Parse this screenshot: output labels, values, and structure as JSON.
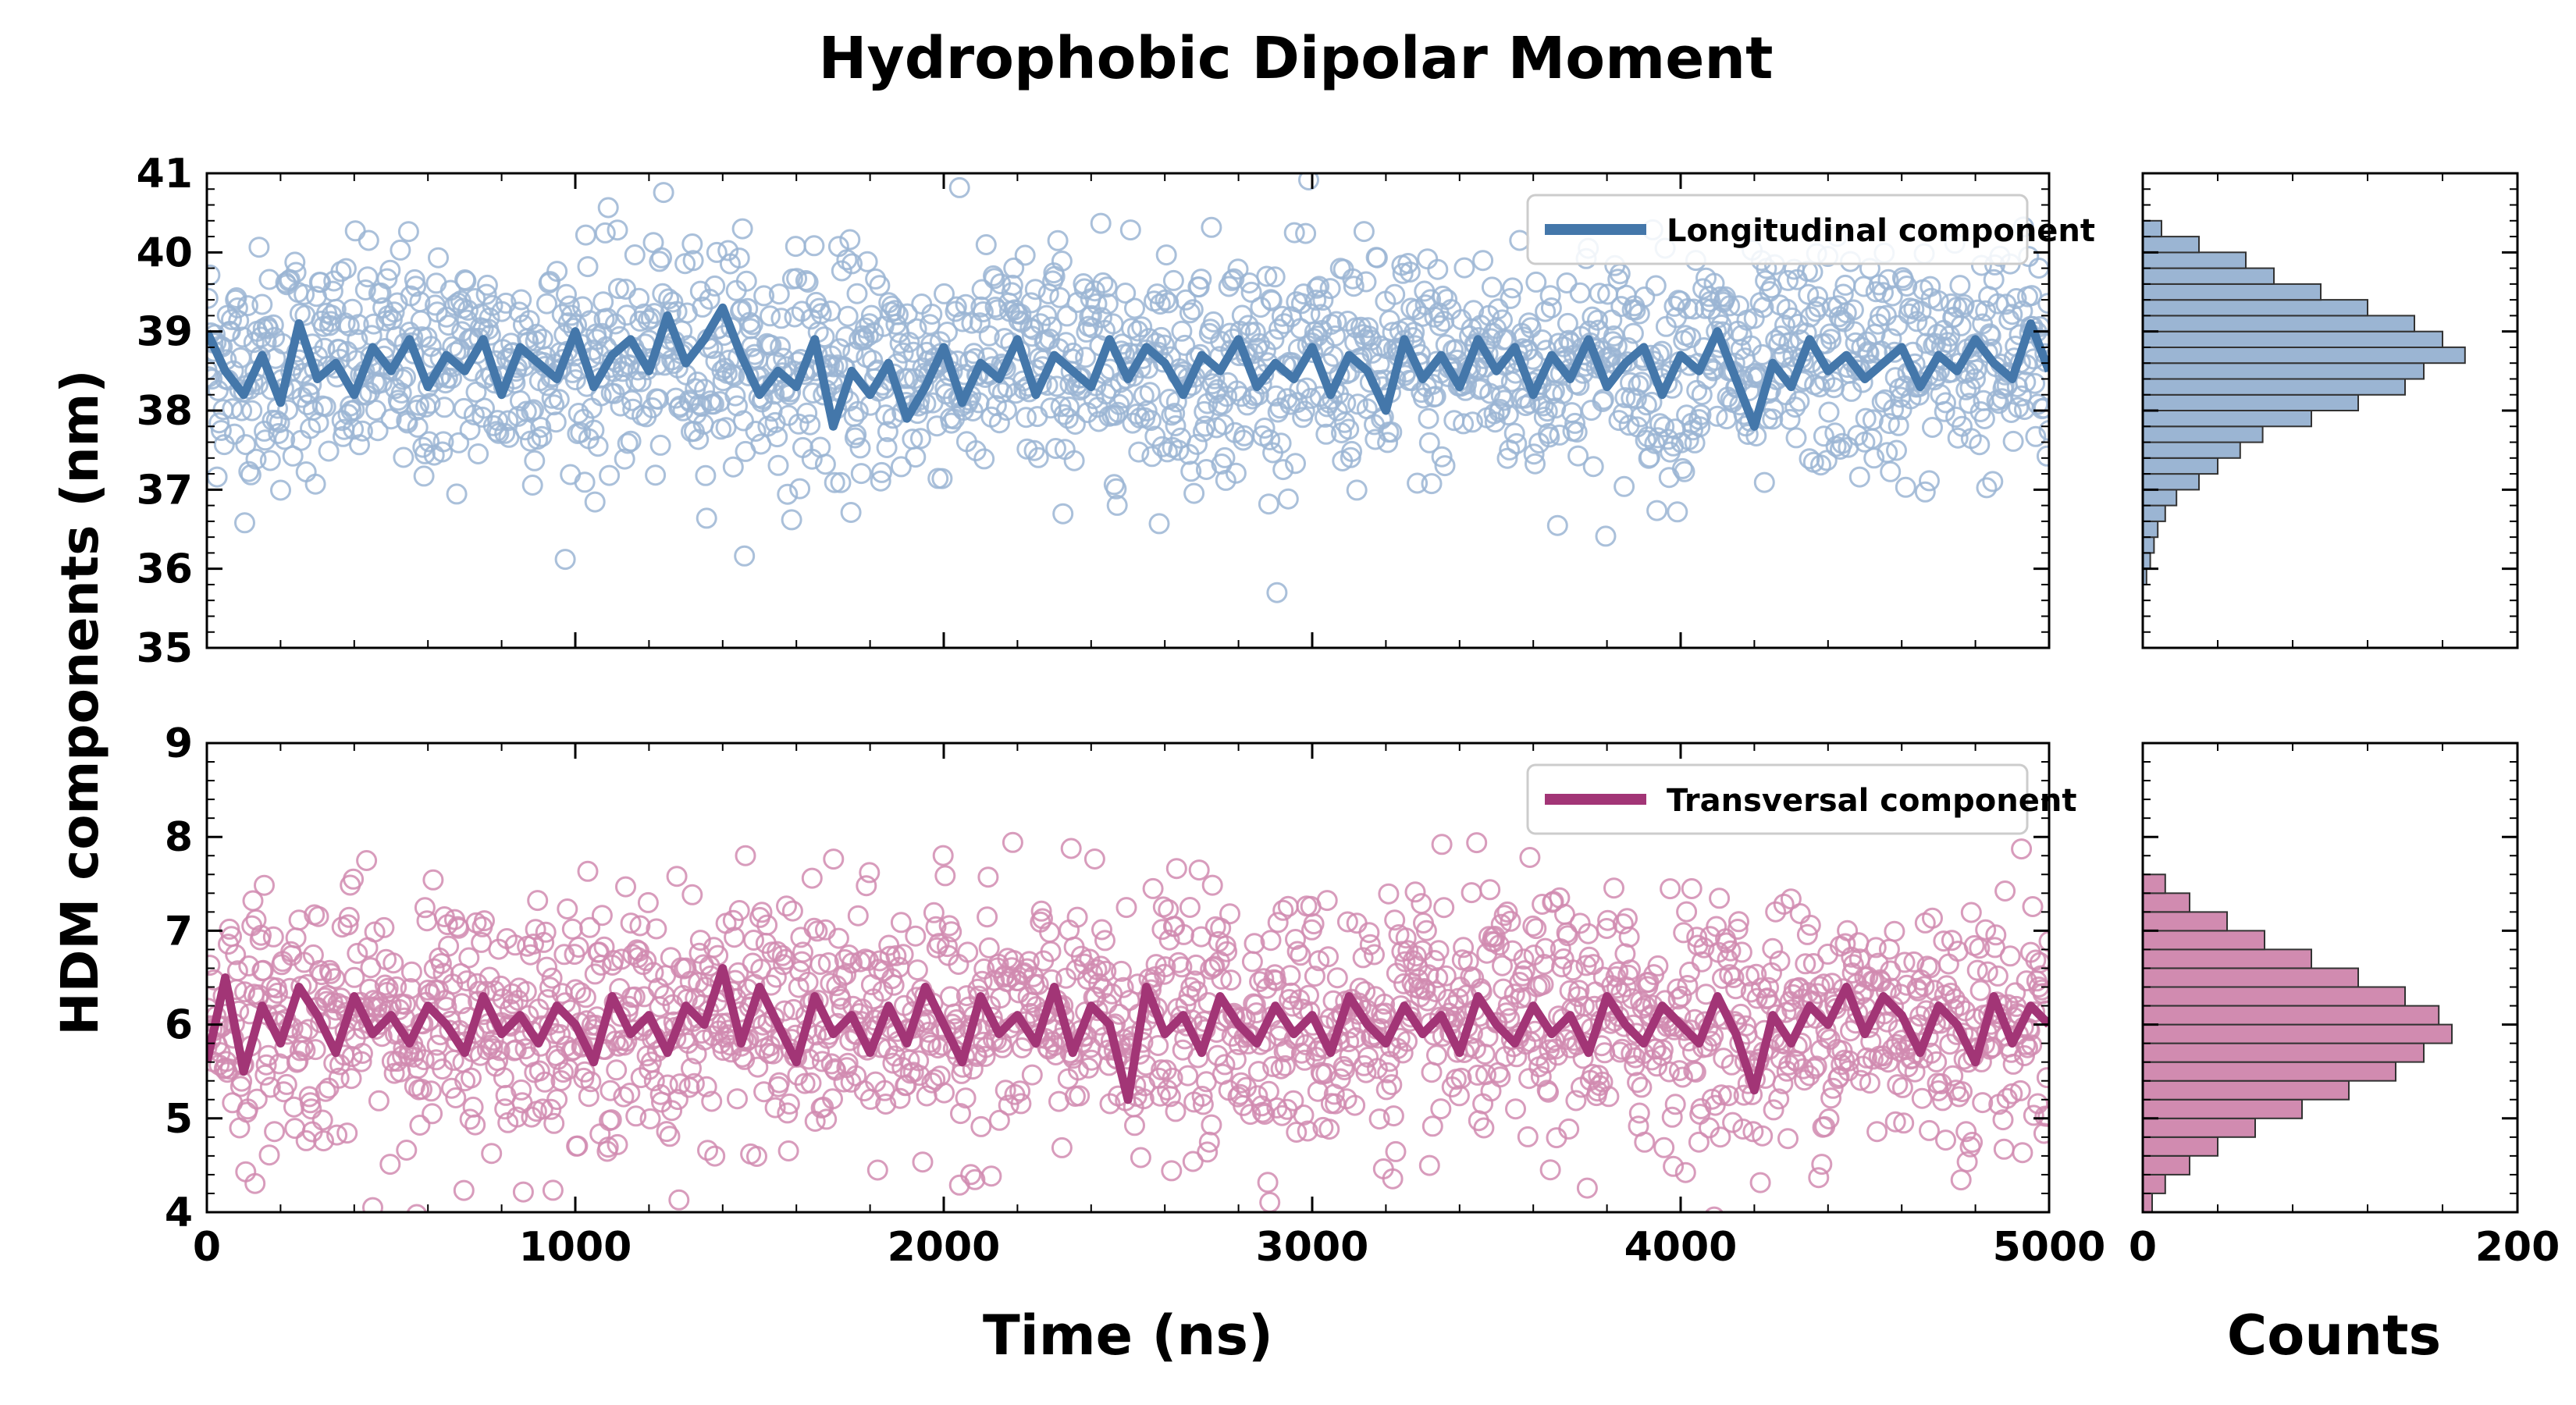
{
  "chart_data": {
    "type": "scatter",
    "title": "Hydrophobic Dipolar Moment",
    "xlabel": "Time (ns)",
    "ylabel": "HDM components (nm)",
    "hist_xlabel": "Counts",
    "grid": false,
    "panels": [
      {
        "id": "longitudinal",
        "legend": "Longitudinal component",
        "legend_position": "top-right",
        "color": "#4477aa",
        "fill": "#9bb5d3",
        "xlim": [
          0,
          5000
        ],
        "ylim": [
          35,
          41
        ],
        "xticks": [
          0,
          1000,
          2000,
          3000,
          4000,
          5000
        ],
        "yticks": [
          35,
          36,
          37,
          38,
          39,
          40,
          41
        ],
        "mean": 38.6,
        "spread": 0.72,
        "smooth_line": {
          "x": [
            0,
            50,
            100,
            150,
            200,
            250,
            300,
            350,
            400,
            450,
            500,
            550,
            600,
            650,
            700,
            750,
            800,
            850,
            900,
            950,
            1000,
            1050,
            1100,
            1150,
            1200,
            1250,
            1300,
            1350,
            1400,
            1450,
            1500,
            1550,
            1600,
            1650,
            1700,
            1750,
            1800,
            1850,
            1900,
            1950,
            2000,
            2050,
            2100,
            2150,
            2200,
            2250,
            2300,
            2350,
            2400,
            2450,
            2500,
            2550,
            2600,
            2650,
            2700,
            2750,
            2800,
            2850,
            2900,
            2950,
            3000,
            3050,
            3100,
            3150,
            3200,
            3250,
            3300,
            3350,
            3400,
            3450,
            3500,
            3550,
            3600,
            3650,
            3700,
            3750,
            3800,
            3850,
            3900,
            3950,
            4000,
            4050,
            4100,
            4150,
            4200,
            4250,
            4300,
            4350,
            4400,
            4450,
            4500,
            4550,
            4600,
            4650,
            4700,
            4750,
            4800,
            4850,
            4900,
            4950,
            5000
          ],
          "y": [
            39.0,
            38.5,
            38.2,
            38.7,
            38.1,
            39.1,
            38.4,
            38.6,
            38.2,
            38.8,
            38.5,
            38.9,
            38.3,
            38.7,
            38.5,
            38.9,
            38.2,
            38.8,
            38.6,
            38.4,
            39.0,
            38.3,
            38.7,
            38.9,
            38.5,
            39.2,
            38.6,
            38.9,
            39.3,
            38.7,
            38.2,
            38.5,
            38.3,
            38.9,
            37.8,
            38.5,
            38.2,
            38.6,
            37.9,
            38.3,
            38.8,
            38.1,
            38.6,
            38.4,
            38.9,
            38.2,
            38.7,
            38.5,
            38.3,
            38.9,
            38.4,
            38.8,
            38.6,
            38.2,
            38.7,
            38.5,
            38.9,
            38.3,
            38.6,
            38.4,
            38.8,
            38.2,
            38.7,
            38.5,
            38.0,
            38.9,
            38.4,
            38.7,
            38.3,
            38.9,
            38.5,
            38.8,
            38.2,
            38.7,
            38.4,
            38.9,
            38.3,
            38.6,
            38.8,
            38.2,
            38.7,
            38.5,
            39.0,
            38.4,
            37.8,
            38.6,
            38.3,
            38.9,
            38.5,
            38.7,
            38.4,
            38.6,
            38.8,
            38.3,
            38.7,
            38.5,
            38.9,
            38.6,
            38.4,
            39.1,
            38.5
          ]
        },
        "histogram": {
          "bin_edges": [
            35.8,
            36.0,
            36.2,
            36.4,
            36.6,
            36.8,
            37.0,
            37.2,
            37.4,
            37.6,
            37.8,
            38.0,
            38.2,
            38.4,
            38.6,
            38.8,
            39.0,
            39.2,
            39.4,
            39.6,
            39.8,
            40.0,
            40.2,
            40.4
          ],
          "counts": [
            2,
            4,
            6,
            8,
            12,
            18,
            30,
            40,
            52,
            64,
            90,
            115,
            140,
            150,
            172,
            160,
            145,
            120,
            95,
            70,
            55,
            30,
            10
          ],
          "xlim": [
            0,
            200
          ],
          "xticks": [
            0,
            200
          ]
        }
      },
      {
        "id": "transversal",
        "legend": "Transversal component",
        "legend_position": "top-right",
        "color": "#a23576",
        "fill": "#d18bb0",
        "xlim": [
          0,
          5000
        ],
        "ylim": [
          4,
          9
        ],
        "xticks": [
          0,
          1000,
          2000,
          3000,
          4000,
          5000
        ],
        "yticks": [
          4,
          5,
          6,
          7,
          8,
          9
        ],
        "mean": 6.05,
        "spread": 0.65,
        "smooth_line": {
          "x": [
            0,
            50,
            100,
            150,
            200,
            250,
            300,
            350,
            400,
            450,
            500,
            550,
            600,
            650,
            700,
            750,
            800,
            850,
            900,
            950,
            1000,
            1050,
            1100,
            1150,
            1200,
            1250,
            1300,
            1350,
            1400,
            1450,
            1500,
            1550,
            1600,
            1650,
            1700,
            1750,
            1800,
            1850,
            1900,
            1950,
            2000,
            2050,
            2100,
            2150,
            2200,
            2250,
            2300,
            2350,
            2400,
            2450,
            2500,
            2550,
            2600,
            2650,
            2700,
            2750,
            2800,
            2850,
            2900,
            2950,
            3000,
            3050,
            3100,
            3150,
            3200,
            3250,
            3300,
            3350,
            3400,
            3450,
            3500,
            3550,
            3600,
            3650,
            3700,
            3750,
            3800,
            3850,
            3900,
            3950,
            4000,
            4050,
            4100,
            4150,
            4200,
            4250,
            4300,
            4350,
            4400,
            4450,
            4500,
            4550,
            4600,
            4650,
            4700,
            4750,
            4800,
            4850,
            4900,
            4950,
            5000
          ],
          "y": [
            5.6,
            6.5,
            5.5,
            6.2,
            5.8,
            6.4,
            6.1,
            5.7,
            6.3,
            5.9,
            6.1,
            5.8,
            6.2,
            6.0,
            5.7,
            6.3,
            5.9,
            6.1,
            5.8,
            6.2,
            6.0,
            5.6,
            6.3,
            5.9,
            6.1,
            5.7,
            6.2,
            6.0,
            6.6,
            5.8,
            6.4,
            6.0,
            5.6,
            6.3,
            5.9,
            6.1,
            5.7,
            6.2,
            5.8,
            6.4,
            6.0,
            5.6,
            6.3,
            5.9,
            6.1,
            5.8,
            6.4,
            5.7,
            6.2,
            6.0,
            5.2,
            6.4,
            5.9,
            6.1,
            5.7,
            6.3,
            6.0,
            5.8,
            6.2,
            5.9,
            6.1,
            5.7,
            6.3,
            6.0,
            5.8,
            6.2,
            5.9,
            6.1,
            5.7,
            6.3,
            6.0,
            5.8,
            6.2,
            5.9,
            6.1,
            5.7,
            6.3,
            6.0,
            5.8,
            6.2,
            6.0,
            5.8,
            6.3,
            5.9,
            5.3,
            6.1,
            5.8,
            6.2,
            6.0,
            6.4,
            5.9,
            6.3,
            6.1,
            5.7,
            6.2,
            6.0,
            5.6,
            6.3,
            5.8,
            6.2,
            6.0
          ]
        },
        "histogram": {
          "bin_edges": [
            4.0,
            4.2,
            4.4,
            4.6,
            4.8,
            5.0,
            5.2,
            5.4,
            5.6,
            5.8,
            6.0,
            6.2,
            6.4,
            6.6,
            6.8,
            7.0,
            7.2,
            7.4,
            7.6
          ],
          "counts": [
            5,
            12,
            25,
            40,
            60,
            85,
            110,
            135,
            150,
            165,
            158,
            140,
            115,
            90,
            65,
            45,
            25,
            12
          ],
          "xlim": [
            0,
            200
          ],
          "xticks": [
            0,
            200
          ]
        }
      }
    ]
  }
}
